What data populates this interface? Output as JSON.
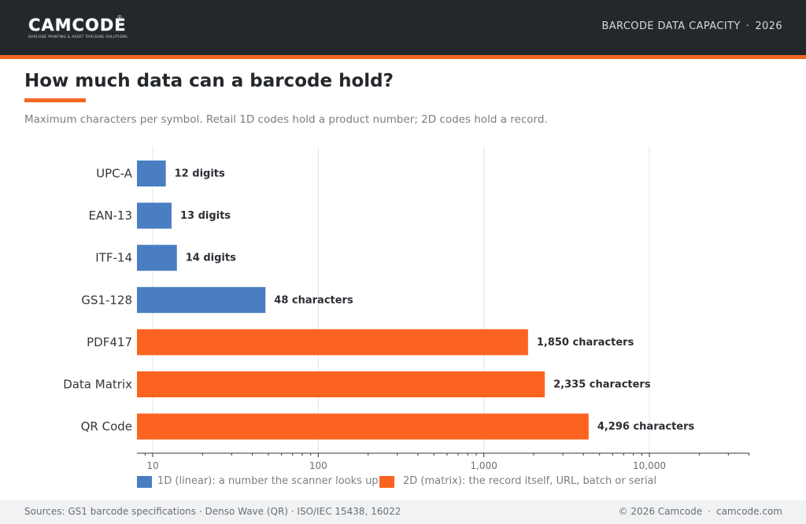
{
  "header": {
    "logo_text": "CAMCODE",
    "logo_mark": "®",
    "logo_tagline": "BARCODE PRINTING & ASSET TRACKING SOLUTIONS",
    "right_label": "BARCODE DATA CAPACITY",
    "right_separator": "·",
    "right_year": "2026"
  },
  "page": {
    "title": "How much data can a barcode hold?",
    "subtitle": "Maximum characters per symbol. Retail 1D codes hold a product number; 2D codes hold a record."
  },
  "colors": {
    "linear": "#4a7ec2",
    "matrix": "#fc6320",
    "accent": "#f26522",
    "header_bg": "#24282c"
  },
  "chart_data": {
    "type": "bar",
    "orientation": "horizontal",
    "x_scale": "log",
    "xlim": [
      8,
      40000
    ],
    "x_ticks": [
      10,
      100,
      1000,
      10000
    ],
    "x_tick_labels": [
      "10",
      "100",
      "1,000",
      "10,000"
    ],
    "grid": true,
    "categories": [
      "UPC-A",
      "EAN-13",
      "ITF-14",
      "GS1-128",
      "PDF417",
      "Data Matrix",
      "QR Code"
    ],
    "values": [
      12,
      13,
      14,
      48,
      1850,
      2335,
      4296
    ],
    "value_labels": [
      "12 digits",
      "13 digits",
      "14 digits",
      "48 characters",
      "1,850 characters",
      "2,335 characters",
      "4,296 characters"
    ],
    "groups": [
      "linear",
      "linear",
      "linear",
      "linear",
      "matrix",
      "matrix",
      "matrix"
    ],
    "legend_position": "bottom",
    "legend": [
      {
        "key": "linear",
        "label": "1D (linear): a number the scanner looks up"
      },
      {
        "key": "matrix",
        "label": "2D (matrix): the record itself, URL, batch or serial"
      }
    ]
  },
  "footer": {
    "sources": "Sources: GS1 barcode specifications · Denso Wave (QR) · ISO/IEC 15438, 16022",
    "copyright": "© 2026 Camcode",
    "separator": "·",
    "site": "camcode.com"
  }
}
